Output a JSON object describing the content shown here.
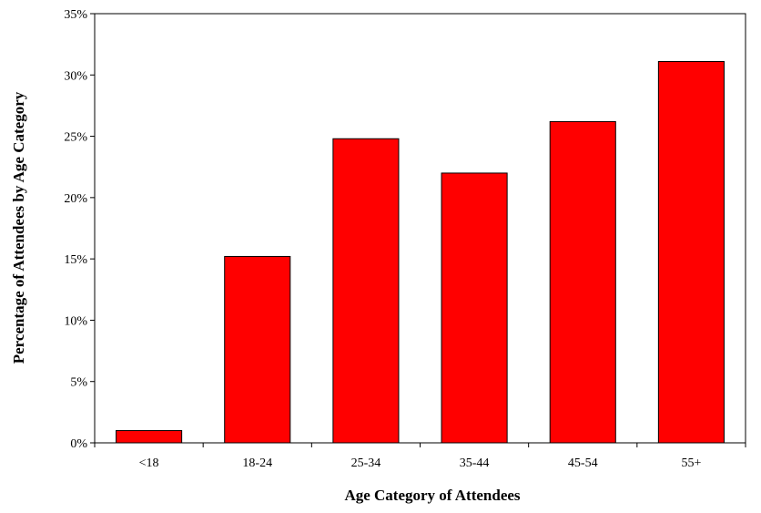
{
  "chart_data": {
    "type": "bar",
    "categories": [
      "<18",
      "18-24",
      "25-34",
      "35-44",
      "45-54",
      "55+"
    ],
    "values": [
      1.0,
      15.2,
      24.8,
      22.0,
      26.2,
      31.1
    ],
    "xlabel": "Age Category of Attendees",
    "ylabel": "Percentage of Attendees by Age Category",
    "ylim": [
      0,
      35
    ],
    "y_ticks": [
      0,
      5,
      10,
      15,
      20,
      25,
      30,
      35
    ],
    "y_tick_labels": [
      "0%",
      "5%",
      "10%",
      "15%",
      "20%",
      "25%",
      "30%",
      "35%"
    ],
    "grid": false,
    "legend": "none",
    "bar_color": "#ff0000",
    "bar_edge_color": "#000000"
  }
}
